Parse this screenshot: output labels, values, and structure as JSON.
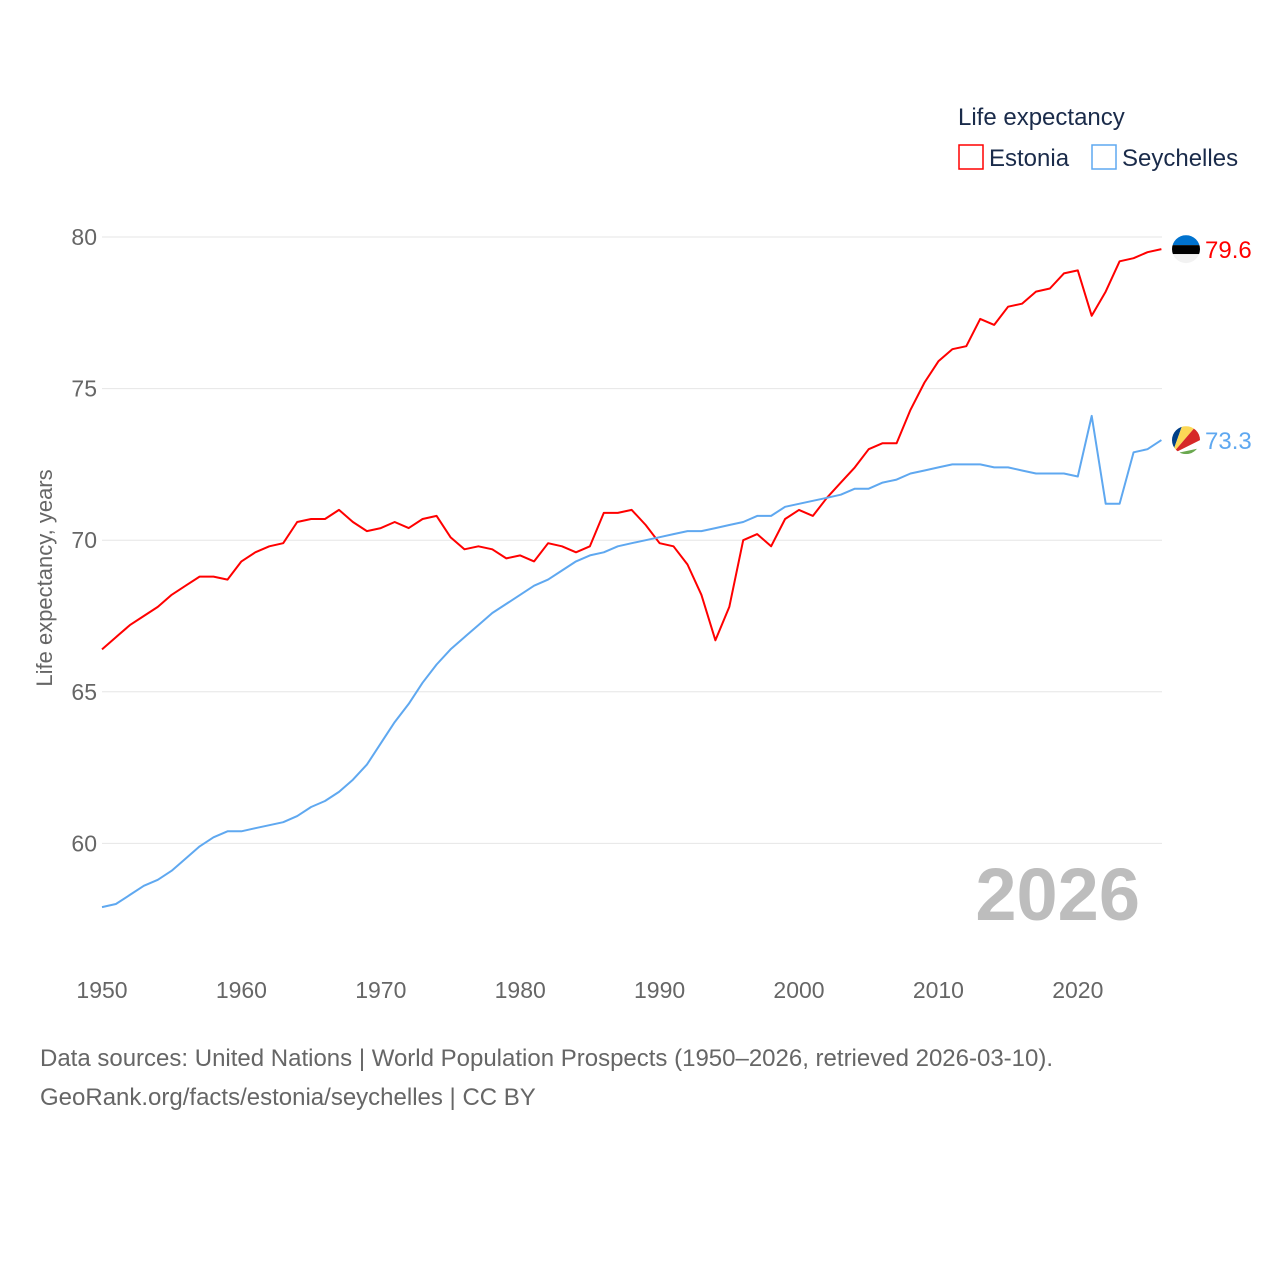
{
  "chart_data": {
    "type": "line",
    "title": "",
    "xlabel": "",
    "ylabel": "Life expectancy, years",
    "xlim": [
      1950,
      2026
    ],
    "ylim": [
      57.5,
      81
    ],
    "yticks": [
      60,
      65,
      70,
      75,
      80
    ],
    "xticks": [
      1950,
      1960,
      1970,
      1980,
      1990,
      2000,
      2010,
      2020
    ],
    "grid": true,
    "year_label": "2026",
    "legend": {
      "title": "Life expectancy",
      "placement": "top-right"
    },
    "x_start": 1950,
    "series": [
      {
        "name": "Estonia",
        "color": "#ff0000",
        "end_label": "79.6",
        "flag": "estonia-flag",
        "values": [
          66.4,
          66.8,
          67.2,
          67.5,
          67.8,
          68.2,
          68.5,
          68.8,
          68.8,
          68.7,
          69.3,
          69.6,
          69.8,
          69.9,
          70.6,
          70.7,
          70.7,
          71.0,
          70.6,
          70.3,
          70.4,
          70.6,
          70.4,
          70.7,
          70.8,
          70.1,
          69.7,
          69.8,
          69.7,
          69.4,
          69.5,
          69.3,
          69.9,
          69.8,
          69.6,
          69.8,
          70.9,
          70.9,
          71.0,
          70.5,
          69.9,
          69.8,
          69.2,
          68.2,
          66.7,
          67.8,
          70.0,
          70.2,
          69.8,
          70.7,
          71.0,
          70.8,
          71.4,
          71.9,
          72.4,
          73.0,
          73.2,
          73.2,
          74.3,
          75.2,
          75.9,
          76.3,
          76.4,
          77.3,
          77.1,
          77.7,
          77.8,
          78.2,
          78.3,
          78.8,
          78.9,
          77.4,
          78.2,
          79.2,
          79.3,
          79.5,
          79.6
        ]
      },
      {
        "name": "Seychelles",
        "color": "#5fa8f0",
        "end_label": "73.3",
        "flag": "seychelles-flag",
        "values": [
          57.9,
          58.0,
          58.3,
          58.6,
          58.8,
          59.1,
          59.5,
          59.9,
          60.2,
          60.4,
          60.4,
          60.5,
          60.6,
          60.7,
          60.9,
          61.2,
          61.4,
          61.7,
          62.1,
          62.6,
          63.3,
          64.0,
          64.6,
          65.3,
          65.9,
          66.4,
          66.8,
          67.2,
          67.6,
          67.9,
          68.2,
          68.5,
          68.7,
          69.0,
          69.3,
          69.5,
          69.6,
          69.8,
          69.9,
          70.0,
          70.1,
          70.2,
          70.3,
          70.3,
          70.4,
          70.5,
          70.6,
          70.8,
          70.8,
          71.1,
          71.2,
          71.3,
          71.4,
          71.5,
          71.7,
          71.7,
          71.9,
          72.0,
          72.2,
          72.3,
          72.4,
          72.5,
          72.5,
          72.5,
          72.4,
          72.4,
          72.3,
          72.2,
          72.2,
          72.2,
          72.1,
          74.1,
          71.2,
          71.2,
          72.9,
          73.0,
          73.3
        ]
      }
    ]
  },
  "footer": {
    "sources": "Data sources: United Nations | World Population Prospects (1950–2026, retrieved 2026-03-10).",
    "credit": "GeoRank.org/facts/estonia/seychelles | CC BY"
  }
}
